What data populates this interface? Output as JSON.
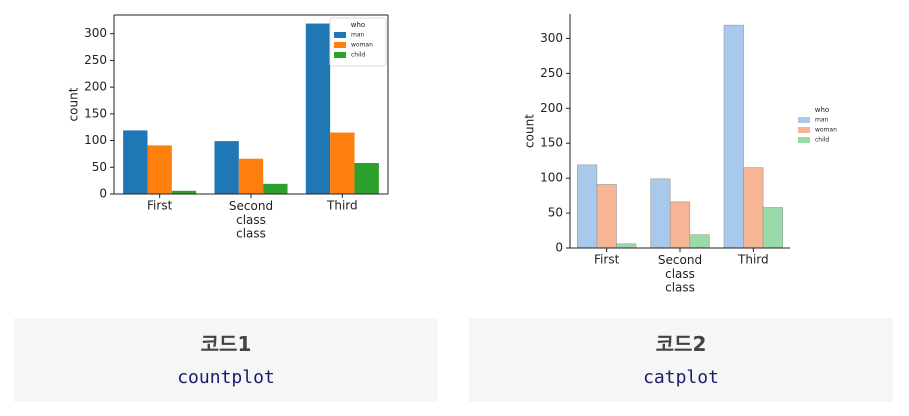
{
  "chart_data": [
    {
      "type": "bar",
      "x_label": "class",
      "y_label": "count",
      "categories": [
        "First",
        "Second\nclass",
        "Third"
      ],
      "series": [
        {
          "name": "man",
          "color": "#1f77b4",
          "values": [
            119,
            99,
            319
          ]
        },
        {
          "name": "woman",
          "color": "#ff7f0e",
          "values": [
            91,
            66,
            115
          ]
        },
        {
          "name": "child",
          "color": "#2ca02c",
          "values": [
            6,
            19,
            58
          ]
        }
      ],
      "ylim": [
        0,
        335
      ],
      "yticks": [
        0,
        50,
        100,
        150,
        200,
        250,
        300
      ],
      "legend_title": "who",
      "legend": "upper right",
      "spines": "box"
    },
    {
      "type": "bar",
      "x_label": "class",
      "y_label": "count",
      "categories": [
        "First",
        "Second\nclass",
        "Third"
      ],
      "series": [
        {
          "name": "man",
          "color": "#a9c9ec",
          "values": [
            119,
            99,
            319
          ]
        },
        {
          "name": "woman",
          "color": "#f6b594",
          "values": [
            91,
            66,
            115
          ]
        },
        {
          "name": "child",
          "color": "#98dba8",
          "values": [
            6,
            19,
            58
          ]
        }
      ],
      "ylim": [
        0,
        335
      ],
      "yticks": [
        0,
        50,
        100,
        150,
        200,
        250,
        300
      ],
      "legend_title": "who",
      "legend": "outside right",
      "spines": "left-bottom",
      "edgecolor": "#999999"
    }
  ],
  "captions": [
    {
      "title": "코드1",
      "code": "countplot"
    },
    {
      "title": "코드2",
      "code": "catplot"
    }
  ]
}
